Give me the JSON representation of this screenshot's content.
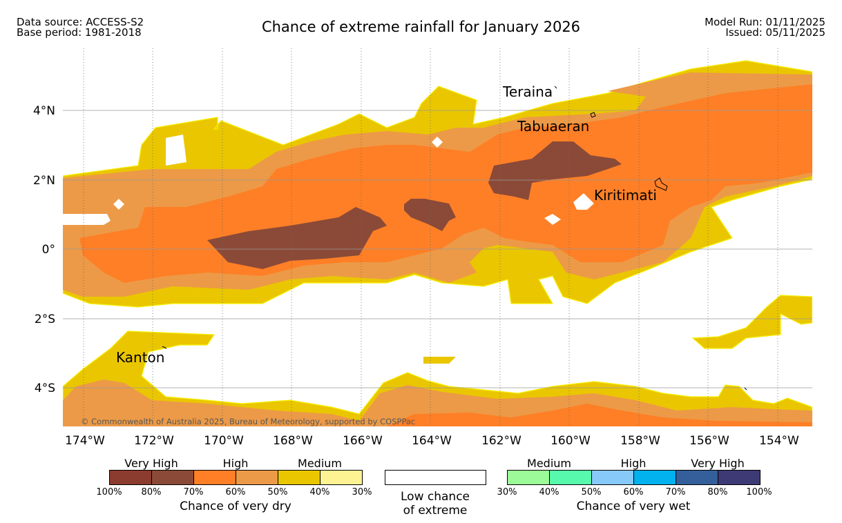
{
  "header": {
    "data_source": "Data source: ACCESS-S2",
    "base_period": "Base period: 1981-2018",
    "title": "Chance of extreme rainfall for January 2026",
    "model_run": "Model Run: 01/11/2025",
    "issued": "Issued: 05/11/2025"
  },
  "map": {
    "lon_ticks": [
      "174°W",
      "172°W",
      "170°W",
      "168°W",
      "166°W",
      "164°W",
      "162°W",
      "160°W",
      "158°W",
      "156°W",
      "154°W"
    ],
    "lat_ticks": [
      "4°N",
      "2°N",
      "0°",
      "2°S",
      "4°S"
    ],
    "places": [
      "Teraina",
      "Tabuaeran",
      "Kiritimati",
      "Kanton"
    ],
    "copyright": "© Commonwealth of Australia 2025, Bureau of Meteorology, supported by COSPPac"
  },
  "legend": {
    "dry": {
      "categories": [
        "Very High",
        "High",
        "Medium"
      ],
      "percents": [
        "100%",
        "80%",
        "70%",
        "60%",
        "50%",
        "40%",
        "30%"
      ],
      "colors": [
        "#8c3b2f",
        "#8b4a38",
        "#fe7f26",
        "#ec9a47",
        "#eac600",
        "#fdf392"
      ],
      "caption": "Chance of very dry"
    },
    "low": {
      "line1": "Low chance",
      "line2": "of extreme"
    },
    "wet": {
      "categories": [
        "Medium",
        "High",
        "Very High"
      ],
      "percents": [
        "30%",
        "40%",
        "50%",
        "60%",
        "70%",
        "80%",
        "100%"
      ],
      "colors": [
        "#9cfa98",
        "#57f9ad",
        "#87cafa",
        "#02b2ee",
        "#345f9b",
        "#3d3a76"
      ],
      "caption": "Chance of very wet"
    }
  }
}
